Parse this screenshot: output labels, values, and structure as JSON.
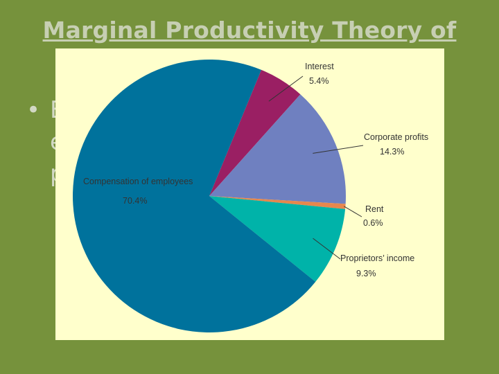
{
  "slide": {
    "title": "Marginal Productivity Theory of",
    "bullet_fragments": [
      "E",
      "e",
      "p"
    ]
  },
  "chart_data": {
    "type": "pie",
    "slices": [
      {
        "label": "Compensation of employees",
        "value": 70.4,
        "value_label": "70.4%",
        "color": "#00729c"
      },
      {
        "label": "Interest",
        "value": 5.4,
        "value_label": "5.4%",
        "color": "#9a1f63"
      },
      {
        "label": "Corporate profits",
        "value": 14.3,
        "value_label": "14.3%",
        "color": "#6f80c0"
      },
      {
        "label": "Rent",
        "value": 0.6,
        "value_label": "0.6%",
        "color": "#e6874d"
      },
      {
        "label": "Proprietors’ income",
        "value": 9.3,
        "value_label": "9.3%",
        "color": "#00b3a9"
      }
    ]
  },
  "colors": {
    "background": "#76923c",
    "panel": "#ffffcc"
  }
}
